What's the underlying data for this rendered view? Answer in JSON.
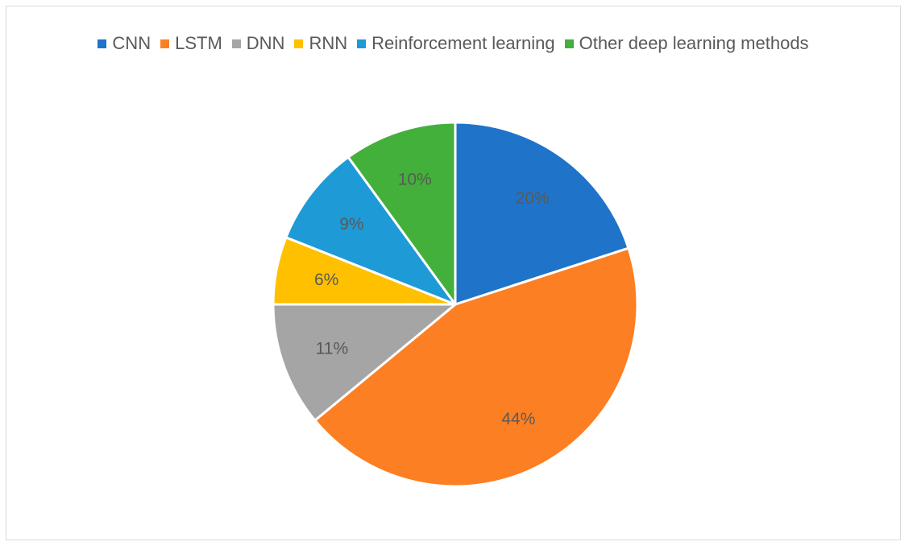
{
  "chart_data": {
    "type": "pie",
    "title": "",
    "legend_position": "top",
    "categories": [
      "CNN",
      "LSTM",
      "DNN",
      "RNN",
      "Reinforcement learning",
      "Other deep learning methods"
    ],
    "values": [
      20,
      44,
      11,
      6,
      9,
      10
    ],
    "labels": [
      "20%",
      "44%",
      "11%",
      "6%",
      "9%",
      "10%"
    ],
    "colors": [
      "#1f74c9",
      "#fd7f23",
      "#a5a5a5",
      "#ffc000",
      "#1e9ad6",
      "#43b03b"
    ],
    "start_angle_deg": 0,
    "direction": "clockwise"
  }
}
